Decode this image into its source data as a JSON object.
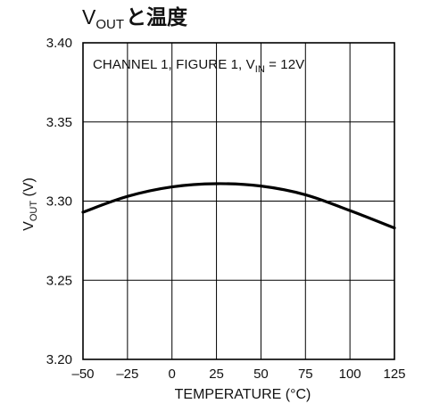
{
  "chart_data": {
    "type": "line",
    "title": {
      "main": "V",
      "subscript": "OUT",
      "tail": "と温度"
    },
    "annotation": {
      "main": "CHANNEL 1, FIGURE 1, V",
      "subscript": "IN",
      "tail": " = 12V"
    },
    "xlabel": "TEMPERATURE (°C)",
    "ylabel": {
      "main": "V",
      "subscript": "OUT",
      "tail": " (V)"
    },
    "x_ticks": [
      -50,
      -25,
      0,
      25,
      50,
      75,
      100,
      125
    ],
    "y_ticks": [
      3.2,
      3.25,
      3.3,
      3.35,
      3.4
    ],
    "y_tick_labels": [
      "3.20",
      "3.25",
      "3.30",
      "3.35",
      "3.40"
    ],
    "xlim": [
      -50,
      125
    ],
    "ylim": [
      3.2,
      3.4
    ],
    "grid": true,
    "series": [
      {
        "x": [
          -50,
          -25,
          0,
          25,
          50,
          75,
          100,
          125
        ],
        "values": [
          3.293,
          3.303,
          3.309,
          3.311,
          3.3095,
          3.304,
          3.294,
          3.283
        ]
      }
    ],
    "colors": {
      "line": "#000000",
      "grid": "#000000",
      "text": "#111111"
    }
  }
}
